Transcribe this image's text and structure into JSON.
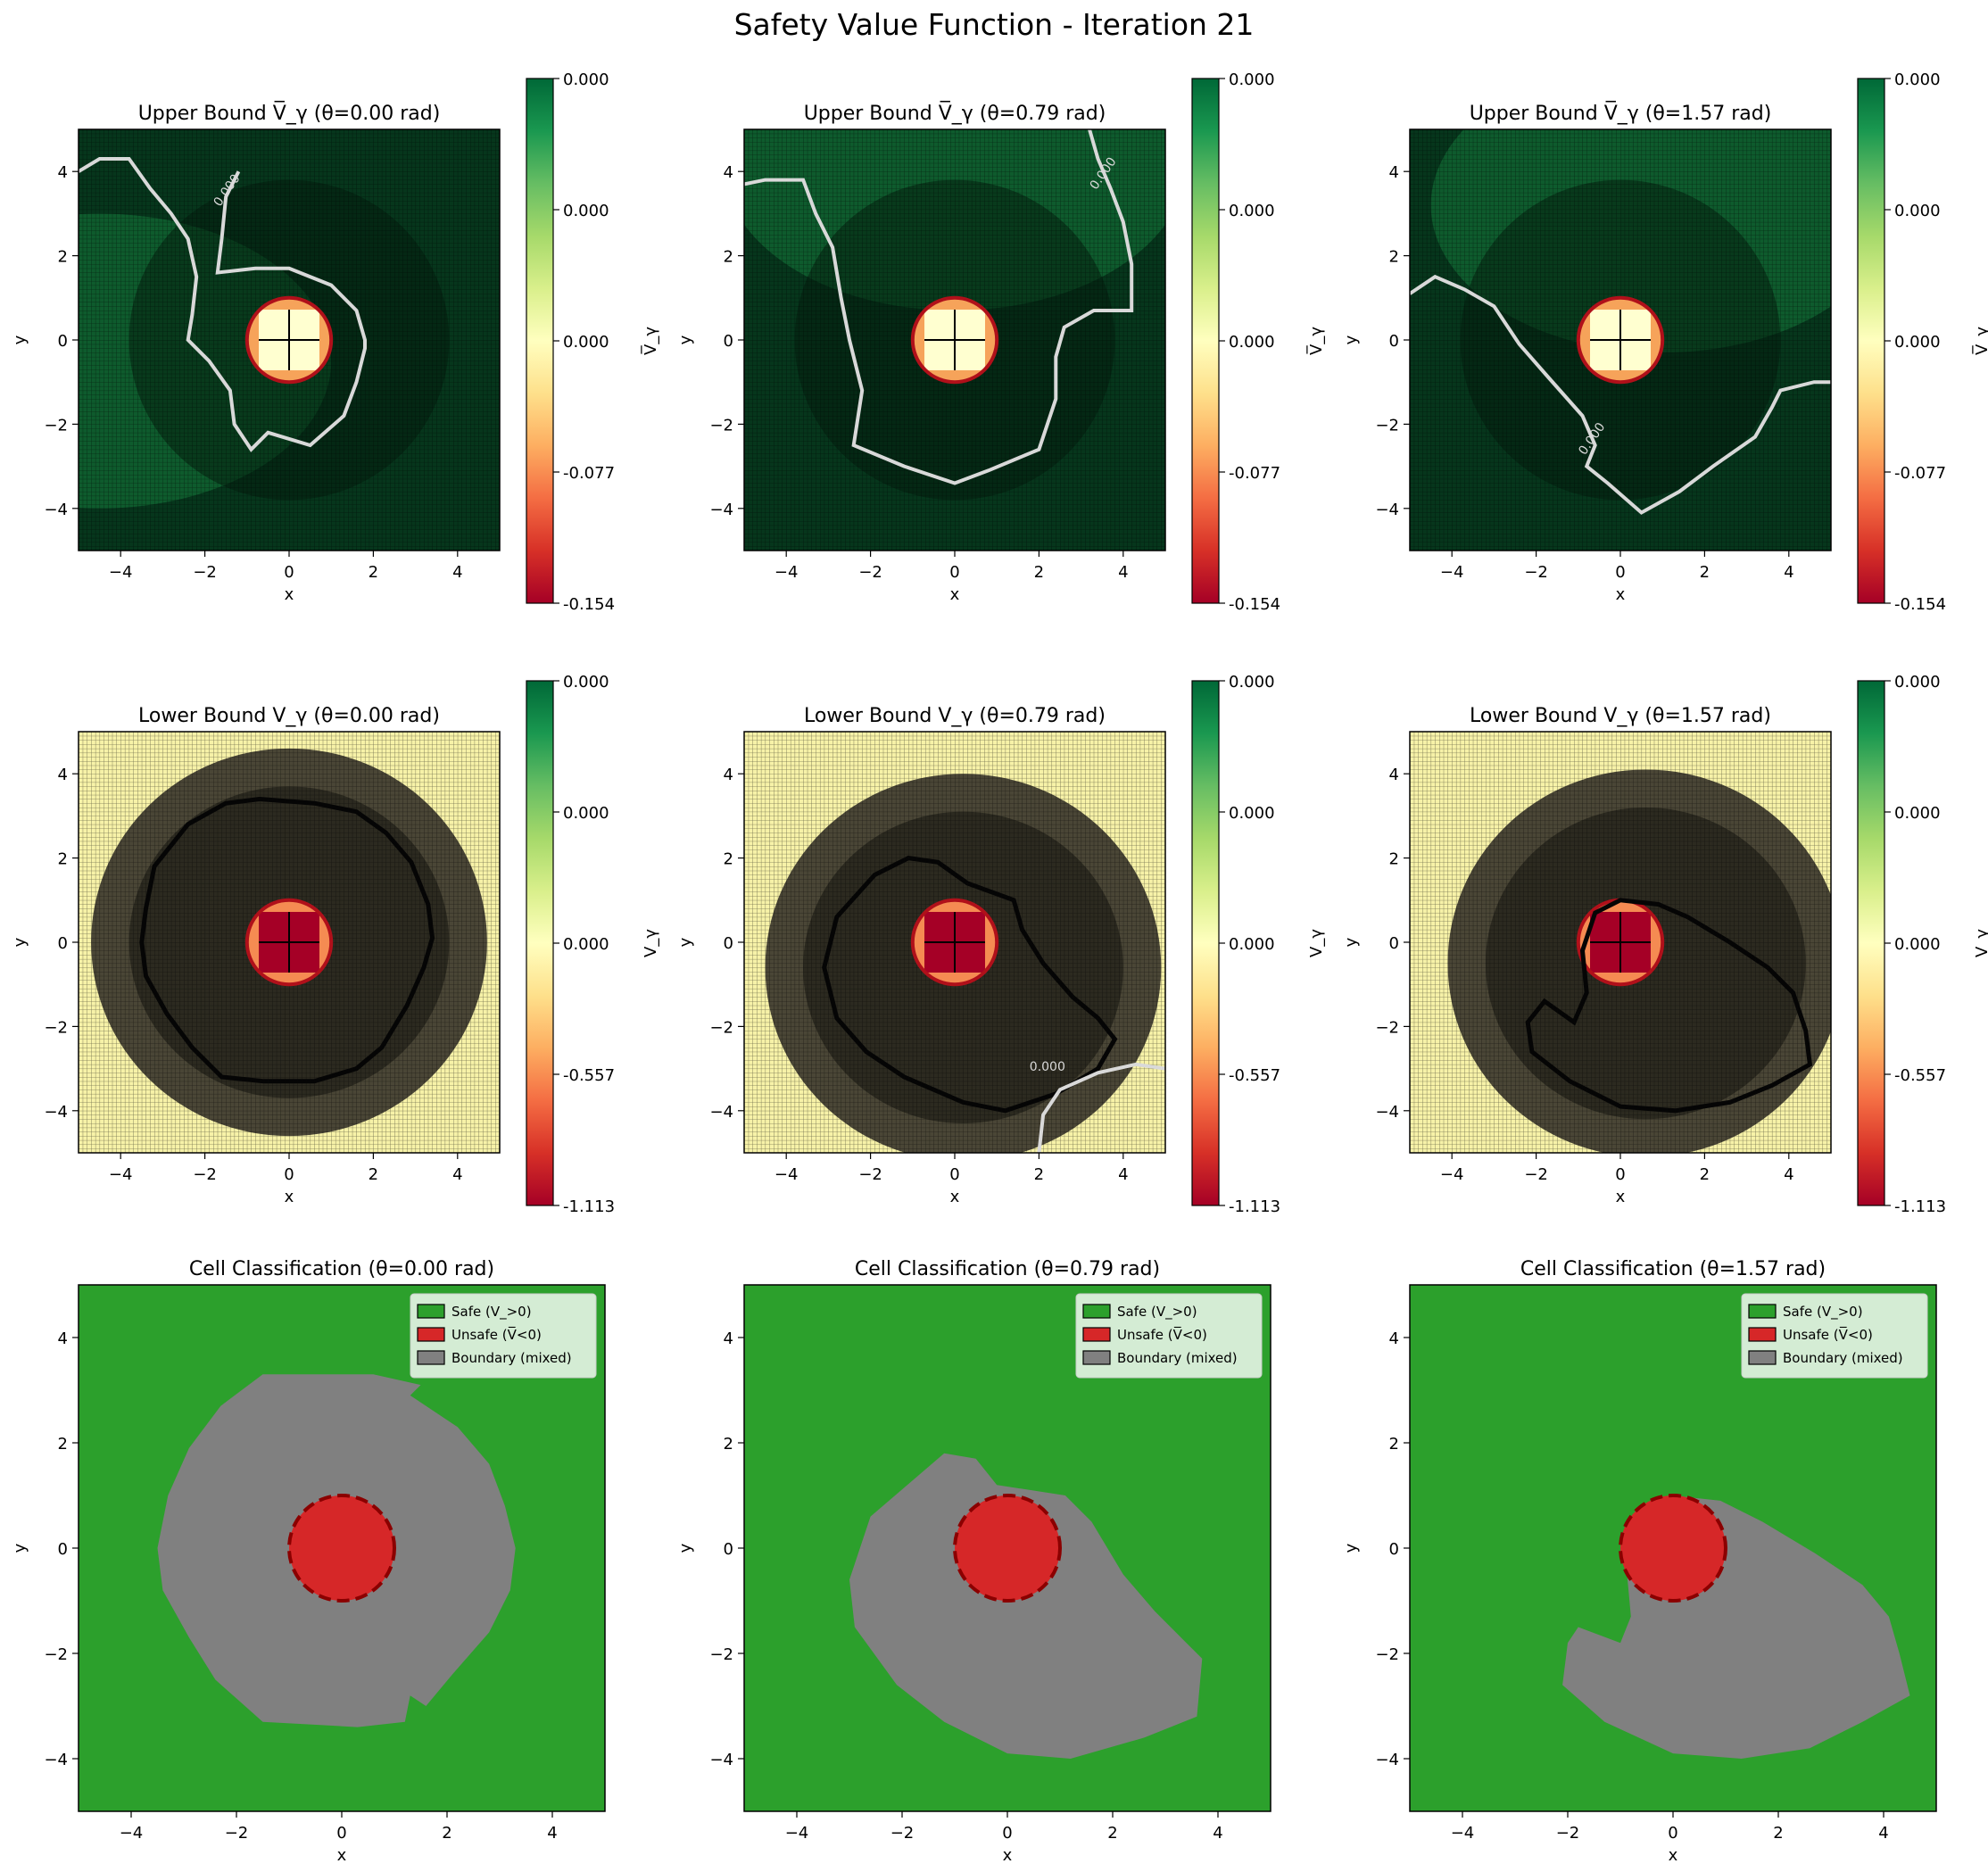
{
  "figure": {
    "title": "Safety Value Function - Iteration 21"
  },
  "colors": {
    "safe": "#2ca02c",
    "unsafe": "#d62728",
    "boundary": "#808080",
    "obstacle_edge": "#8b0000",
    "cmap": [
      "#a50026",
      "#d73027",
      "#f46d43",
      "#fdae61",
      "#fee08b",
      "#ffffbf",
      "#d9ef8b",
      "#a6d96a",
      "#66bd63",
      "#1a9850",
      "#006837"
    ]
  },
  "chart_data": [
    {
      "type": "heatmap",
      "title": "Upper Bound V̅_γ (θ=0.00 rad)",
      "xlabel": "x",
      "ylabel": "y",
      "xlim": [
        -5,
        5
      ],
      "ylim": [
        -5,
        5
      ],
      "xticks": [
        "−4",
        "−2",
        "0",
        "2",
        "4"
      ],
      "yticks": [
        "4",
        "2",
        "0",
        "−2",
        "−4"
      ],
      "colorbar": {
        "label": "V̅_γ",
        "ticks": [
          "0.000",
          "0.000",
          "0.000",
          "-0.077",
          "-0.154"
        ]
      },
      "contour_label": "0.000",
      "obstacle": {
        "center": [
          0,
          0
        ],
        "radius": 1
      }
    },
    {
      "type": "heatmap",
      "title": "Upper Bound V̅_γ (θ=0.79 rad)",
      "xlabel": "x",
      "ylabel": "y",
      "xlim": [
        -5,
        5
      ],
      "ylim": [
        -5,
        5
      ],
      "xticks": [
        "−4",
        "−2",
        "0",
        "2",
        "4"
      ],
      "yticks": [
        "4",
        "2",
        "0",
        "−2",
        "−4"
      ],
      "colorbar": {
        "label": "V̅_γ",
        "ticks": [
          "0.000",
          "0.000",
          "0.000",
          "-0.077",
          "-0.154"
        ]
      },
      "contour_label": "0.000",
      "obstacle": {
        "center": [
          0,
          0
        ],
        "radius": 1
      }
    },
    {
      "type": "heatmap",
      "title": "Upper Bound V̅_γ (θ=1.57 rad)",
      "xlabel": "x",
      "ylabel": "y",
      "xlim": [
        -5,
        5
      ],
      "ylim": [
        -5,
        5
      ],
      "xticks": [
        "−4",
        "−2",
        "0",
        "2",
        "4"
      ],
      "yticks": [
        "4",
        "2",
        "0",
        "−2",
        "−4"
      ],
      "colorbar": {
        "label": "V̅_γ",
        "ticks": [
          "0.000",
          "0.000",
          "0.000",
          "-0.077",
          "-0.154"
        ]
      },
      "contour_label": "0.000",
      "obstacle": {
        "center": [
          0,
          0
        ],
        "radius": 1
      }
    },
    {
      "type": "heatmap",
      "title": "Lower Bound V_γ (θ=0.00 rad)",
      "xlabel": "x",
      "ylabel": "y",
      "xlim": [
        -5,
        5
      ],
      "ylim": [
        -5,
        5
      ],
      "xticks": [
        "−4",
        "−2",
        "0",
        "2",
        "4"
      ],
      "yticks": [
        "4",
        "2",
        "0",
        "−2",
        "−4"
      ],
      "colorbar": {
        "label": "V_γ",
        "ticks": [
          "0.000",
          "0.000",
          "0.000",
          "-0.557",
          "-1.113"
        ]
      },
      "obstacle": {
        "center": [
          0,
          0
        ],
        "radius": 1
      }
    },
    {
      "type": "heatmap",
      "title": "Lower Bound V_γ (θ=0.79 rad)",
      "xlabel": "x",
      "ylabel": "y",
      "xlim": [
        -5,
        5
      ],
      "ylim": [
        -5,
        5
      ],
      "xticks": [
        "−4",
        "−2",
        "0",
        "2",
        "4"
      ],
      "yticks": [
        "4",
        "2",
        "0",
        "−2",
        "−4"
      ],
      "colorbar": {
        "label": "V_γ",
        "ticks": [
          "0.000",
          "0.000",
          "0.000",
          "-0.557",
          "-1.113"
        ]
      },
      "contour_label": "0.000",
      "obstacle": {
        "center": [
          0,
          0
        ],
        "radius": 1
      }
    },
    {
      "type": "heatmap",
      "title": "Lower Bound V_γ (θ=1.57 rad)",
      "xlabel": "x",
      "ylabel": "y",
      "xlim": [
        -5,
        5
      ],
      "ylim": [
        -5,
        5
      ],
      "xticks": [
        "−4",
        "−2",
        "0",
        "2",
        "4"
      ],
      "yticks": [
        "4",
        "2",
        "0",
        "−2",
        "−4"
      ],
      "colorbar": {
        "label": "V_γ",
        "ticks": [
          "0.000",
          "0.000",
          "0.000",
          "-0.557",
          "-1.113"
        ]
      },
      "obstacle": {
        "center": [
          0,
          0
        ],
        "radius": 1
      }
    },
    {
      "type": "heatmap",
      "title": "Cell Classification (θ=0.00 rad)",
      "xlabel": "x",
      "ylabel": "y",
      "xlim": [
        -5,
        5
      ],
      "ylim": [
        -5,
        5
      ],
      "xticks": [
        "−4",
        "−2",
        "0",
        "2",
        "4"
      ],
      "yticks": [
        "4",
        "2",
        "0",
        "−2",
        "−4"
      ],
      "legend": [
        "Safe (V_>0)",
        "Unsafe (V̅<0)",
        "Boundary (mixed)"
      ],
      "legend_loc": "upper right",
      "obstacle": {
        "center": [
          0,
          0
        ],
        "radius": 1
      }
    },
    {
      "type": "heatmap",
      "title": "Cell Classification (θ=0.79 rad)",
      "xlabel": "x",
      "ylabel": "y",
      "xlim": [
        -5,
        5
      ],
      "ylim": [
        -5,
        5
      ],
      "xticks": [
        "−4",
        "−2",
        "0",
        "2",
        "4"
      ],
      "yticks": [
        "4",
        "2",
        "0",
        "−2",
        "−4"
      ],
      "legend": [
        "Safe (V_>0)",
        "Unsafe (V̅<0)",
        "Boundary (mixed)"
      ],
      "legend_loc": "upper right",
      "obstacle": {
        "center": [
          0,
          0
        ],
        "radius": 1
      }
    },
    {
      "type": "heatmap",
      "title": "Cell Classification (θ=1.57 rad)",
      "xlabel": "x",
      "ylabel": "y",
      "xlim": [
        -5,
        5
      ],
      "ylim": [
        -5,
        5
      ],
      "xticks": [
        "−4",
        "−2",
        "0",
        "2",
        "4"
      ],
      "yticks": [
        "4",
        "2",
        "0",
        "−2",
        "−4"
      ],
      "legend": [
        "Safe (V_>0)",
        "Unsafe (V̅<0)",
        "Boundary (mixed)"
      ],
      "legend_loc": "upper right",
      "obstacle": {
        "center": [
          0,
          0
        ],
        "radius": 1
      }
    }
  ]
}
